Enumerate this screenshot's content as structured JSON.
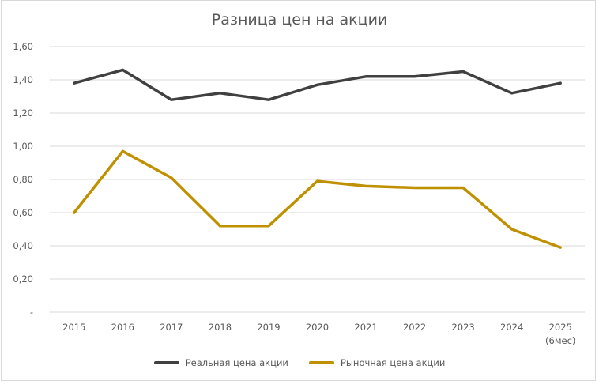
{
  "chart_data": {
    "type": "line",
    "title": "Разница цен на акции",
    "xlabel": "",
    "ylabel": "",
    "categories": [
      "2015",
      "2016",
      "2017",
      "2018",
      "2019",
      "2020",
      "2021",
      "2022",
      "2023",
      "2024",
      "2025 (6мес)"
    ],
    "category_labels": [
      [
        "2015"
      ],
      [
        "2016"
      ],
      [
        "2017"
      ],
      [
        "2018"
      ],
      [
        "2019"
      ],
      [
        "2020"
      ],
      [
        "2021"
      ],
      [
        "2022"
      ],
      [
        "2023"
      ],
      [
        "2024"
      ],
      [
        "2025",
        "(6мес)"
      ]
    ],
    "series": [
      {
        "name": "Реальная цена акции",
        "color": "#404040",
        "values": [
          1.38,
          1.46,
          1.28,
          1.32,
          1.28,
          1.37,
          1.42,
          1.42,
          1.45,
          1.32,
          1.38
        ]
      },
      {
        "name": "Рыночная цена акции",
        "color": "#BF9000",
        "values": [
          0.6,
          0.97,
          0.81,
          0.52,
          0.52,
          0.79,
          0.76,
          0.75,
          0.75,
          0.5,
          0.39
        ]
      }
    ],
    "ylim": [
      0,
      1.6
    ],
    "yticks": [
      0,
      0.2,
      0.4,
      0.6,
      0.8,
      1.0,
      1.2,
      1.4,
      1.6
    ],
    "ytick_labels": [
      "-",
      "0,20",
      "0,40",
      "0,60",
      "0,80",
      "1,00",
      "1,20",
      "1,40",
      "1,60"
    ],
    "grid": true,
    "legend_position": "bottom"
  },
  "colors": {
    "gridline": "#d9d9d9",
    "axis_text": "#595959",
    "title_text": "#595959"
  }
}
